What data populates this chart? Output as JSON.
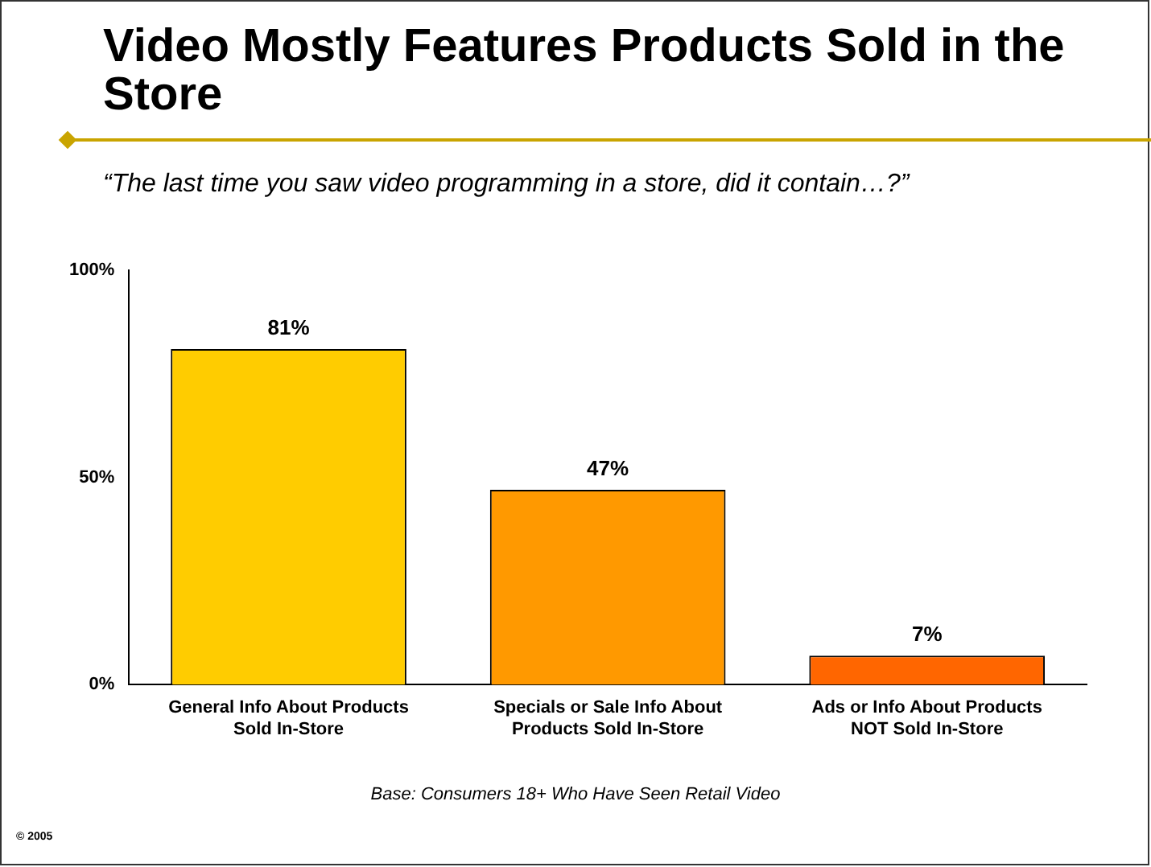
{
  "chart_data": {
    "type": "bar",
    "title": "Video Mostly Features Products Sold in the Store",
    "subtitle": "“The last time you saw video programming in a store, did it contain…?”",
    "categories": [
      "General Info About Products Sold In-Store",
      "Specials or Sale Info About Products Sold In-Store",
      "Ads or Info About Products NOT Sold In-Store"
    ],
    "values": [
      81,
      47,
      7
    ],
    "colors": [
      "#ffcc00",
      "#ff9900",
      "#ff6600"
    ],
    "value_labels": [
      "81%",
      "47%",
      "7%"
    ],
    "ylim": [
      0,
      100
    ],
    "yticks": [
      {
        "value": 0,
        "label": "0%"
      },
      {
        "value": 50,
        "label": "50%"
      },
      {
        "value": 100,
        "label": "100%"
      }
    ],
    "grid": false,
    "legend": false,
    "annotations": [
      "Base:  Consumers 18+ Who Have Seen Retail Video",
      "© 2005"
    ]
  }
}
